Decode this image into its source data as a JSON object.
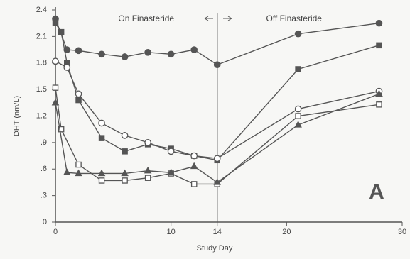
{
  "chart_data": {
    "type": "line",
    "xlabel": "Study Day",
    "ylabel": "DHT (nm/L)",
    "annotations": [
      "On Finasteride",
      "Off Finasteride"
    ],
    "panel_label": "A",
    "vline": 14,
    "xlim": [
      0,
      30
    ],
    "xticks": [
      0,
      10,
      14,
      20,
      30
    ],
    "ylim": [
      0,
      2.4
    ],
    "yticks": [
      0,
      {
        "value": 0.3,
        "label": ".3"
      },
      {
        "value": 0.6,
        "label": ".6"
      },
      {
        "value": 0.9,
        "label": ".9"
      },
      1.2,
      1.5,
      1.8,
      2.1,
      2.4
    ],
    "series": [
      {
        "color": "#555555",
        "marker": "circle",
        "filled": true,
        "x": [
          0,
          1,
          2,
          4,
          6,
          8,
          10,
          12,
          14,
          21,
          28
        ],
        "values": [
          2.3,
          1.95,
          1.94,
          1.9,
          1.87,
          1.92,
          1.9,
          1.95,
          1.78,
          2.13,
          2.25
        ]
      },
      {
        "color": "#555555",
        "marker": "square",
        "filled": true,
        "x": [
          0,
          0.5,
          1,
          2,
          4,
          6,
          8,
          10,
          12,
          14,
          21,
          28
        ],
        "values": [
          2.25,
          2.15,
          1.8,
          1.38,
          0.95,
          0.8,
          0.88,
          0.83,
          0.75,
          0.7,
          1.73,
          2.0
        ]
      },
      {
        "color": "#555555",
        "marker": "circle",
        "filled": false,
        "x": [
          0,
          1,
          2,
          4,
          6,
          8,
          10,
          12,
          14,
          21,
          28
        ],
        "values": [
          1.82,
          1.75,
          1.45,
          1.12,
          0.98,
          0.9,
          0.8,
          0.75,
          0.72,
          1.28,
          1.48
        ]
      },
      {
        "color": "#555555",
        "marker": "square",
        "filled": false,
        "x": [
          0,
          0.5,
          2,
          4,
          6,
          8,
          10,
          12,
          14,
          21,
          28
        ],
        "values": [
          1.52,
          1.05,
          0.65,
          0.47,
          0.47,
          0.5,
          0.55,
          0.43,
          0.43,
          1.2,
          1.33
        ]
      },
      {
        "color": "#555555",
        "marker": "triangle",
        "filled": true,
        "x": [
          0,
          1,
          2,
          4,
          6,
          8,
          10,
          12,
          14,
          21,
          28
        ],
        "values": [
          1.35,
          0.56,
          0.55,
          0.55,
          0.55,
          0.58,
          0.56,
          0.63,
          0.45,
          1.1,
          1.45
        ]
      }
    ]
  }
}
